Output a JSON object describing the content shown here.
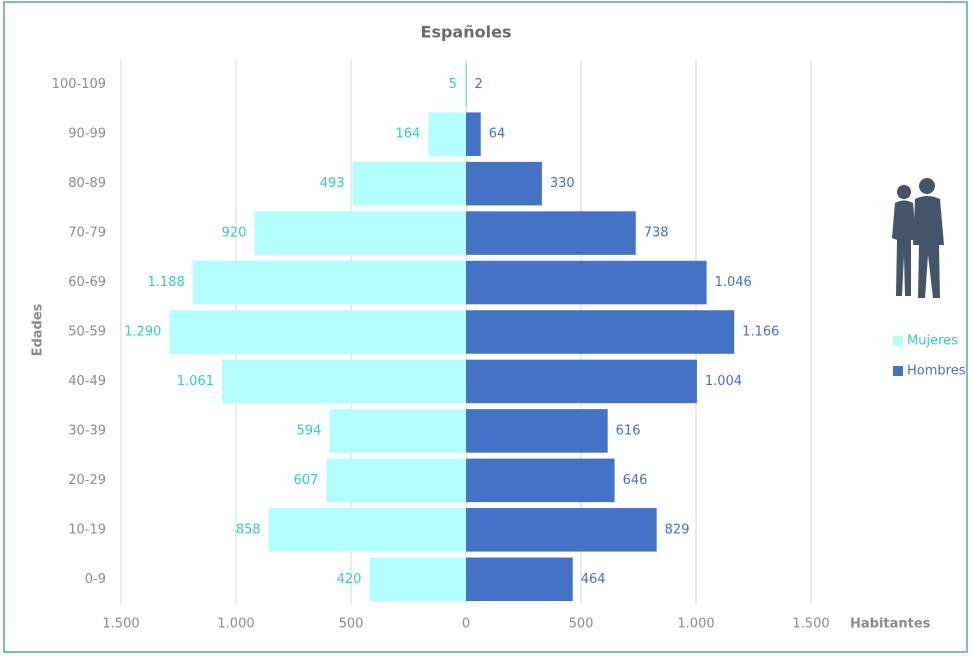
{
  "chart_data": {
    "type": "pyramid",
    "title": "Españoles",
    "y_label": "Edades",
    "x_label": "Habitantes",
    "categories": [
      "0-9",
      "10-19",
      "20-29",
      "30-39",
      "40-49",
      "50-59",
      "60-69",
      "70-79",
      "80-89",
      "90-99",
      "100-109"
    ],
    "series": [
      {
        "name": "Mujeres",
        "color": "#b3ffff",
        "label_color": "#33cccc",
        "side": "left",
        "values": [
          420,
          858,
          607,
          594,
          1061,
          1290,
          1188,
          920,
          493,
          164,
          5
        ],
        "value_labels": [
          "420",
          "858",
          "607",
          "594",
          "1.061",
          "1.290",
          "1.188",
          "920",
          "493",
          "164",
          "5"
        ]
      },
      {
        "name": "Hombres",
        "color": "#4472c4",
        "label_color": "#4472c4",
        "side": "right",
        "values": [
          464,
          829,
          646,
          616,
          1004,
          1166,
          1046,
          738,
          330,
          64,
          2
        ],
        "value_labels": [
          "464",
          "829",
          "646",
          "616",
          "1.004",
          "1.166",
          "1.046",
          "738",
          "330",
          "64",
          "2"
        ]
      }
    ],
    "xlim": [
      -1500,
      1500
    ],
    "xticks": [
      {
        "value": -1500,
        "label": "1.500"
      },
      {
        "value": -1000,
        "label": "1.000"
      },
      {
        "value": -500,
        "label": "500"
      },
      0,
      500,
      {
        "value": 1000,
        "label": "1.000"
      },
      {
        "value": 1500,
        "label": "1.500"
      }
    ],
    "grid": true
  }
}
